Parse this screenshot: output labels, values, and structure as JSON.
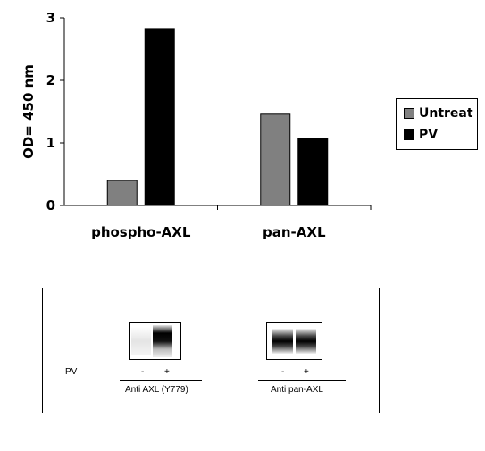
{
  "chart_data": {
    "type": "bar",
    "categories": [
      "phospho-AXL",
      "pan-AXL"
    ],
    "series": [
      {
        "name": "Untreat",
        "color": "#808080",
        "values": [
          0.4,
          1.46
        ]
      },
      {
        "name": "PV",
        "color": "#000000",
        "values": [
          2.83,
          1.07
        ]
      }
    ],
    "xlabel": "",
    "ylabel": "OD= 450 nm",
    "ylim": [
      0,
      3
    ],
    "yticks": [
      0,
      1,
      2,
      3
    ],
    "grid": false,
    "legend_position": "right"
  },
  "legend": {
    "items": [
      {
        "label": "Untreat",
        "color": "#808080"
      },
      {
        "label": "PV",
        "color": "#000000"
      }
    ]
  },
  "blot": {
    "pv_label": "PV",
    "left": {
      "minus": "-",
      "plus": "+",
      "caption": "Anti AXL (Y779)"
    },
    "right": {
      "minus": "-",
      "plus": "+",
      "caption": "Anti pan-AXL"
    }
  }
}
